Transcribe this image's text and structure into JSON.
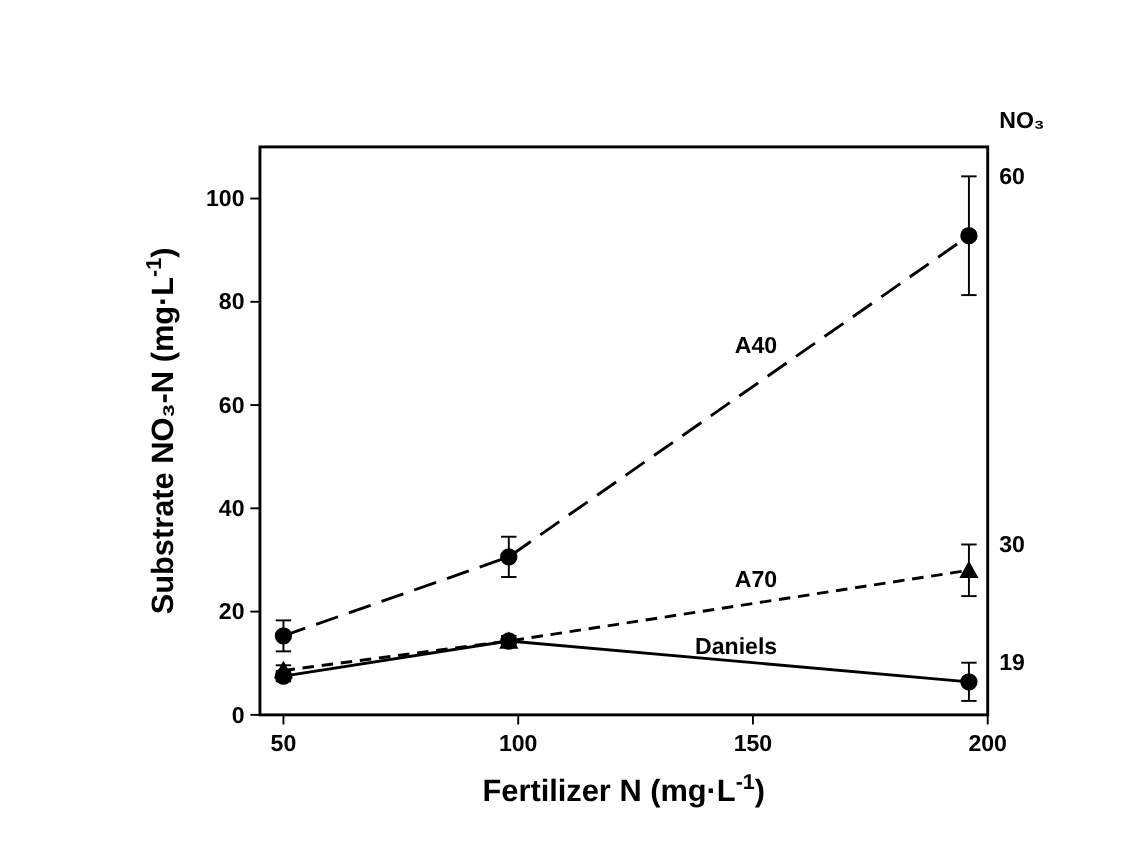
{
  "chart_data": {
    "type": "line",
    "xlabel": "Fertilizer N (mg·L$^{-1}$)",
    "ylabel": "Substrate NO₃-N (mg·L$^{-1}$)",
    "xlim": [
      45,
      200
    ],
    "xticks": [
      50,
      100,
      150,
      200
    ],
    "ylim": [
      0,
      110
    ],
    "yticks": [
      0,
      20,
      40,
      60,
      80,
      100
    ],
    "grid": false,
    "x": [
      50,
      98,
      196
    ],
    "series": [
      {
        "name": "A40",
        "color": "#000000",
        "values": [
          15.3,
          30.6,
          92.8
        ],
        "errors": [
          3,
          3.9,
          11.5
        ],
        "marker": "circle",
        "line_style": "dashed"
      },
      {
        "name": "A70",
        "color": "#000000",
        "values": [
          8.6,
          14.3,
          28
        ],
        "errors": [
          1,
          null,
          5
        ],
        "marker": "triangle",
        "line_style": "dotted"
      },
      {
        "name": "Daniels",
        "color": "#000000",
        "values": [
          7.5,
          14.3,
          6.4
        ],
        "errors": [
          1,
          1,
          3.7
        ],
        "marker": "circle",
        "line_style": "solid"
      }
    ],
    "annotations": [
      "NO₃",
      "60",
      "30",
      "19"
    ]
  }
}
